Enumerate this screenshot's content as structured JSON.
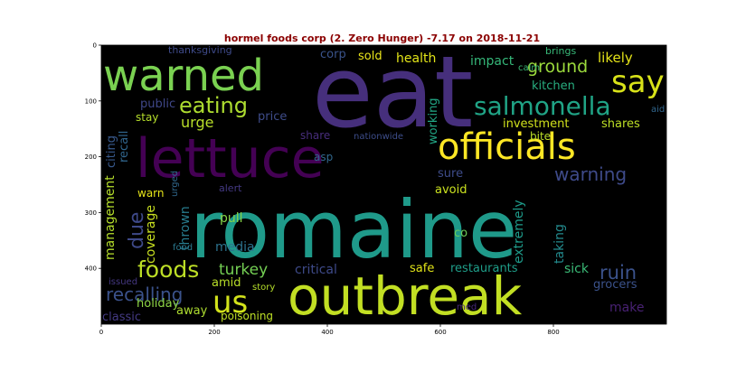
{
  "title": "hormel foods corp (2. Zero Hunger) -7.17 on 2018-11-21",
  "x_ticks": [
    "0",
    "200",
    "400",
    "600",
    "800"
  ],
  "y_ticks": [
    "0",
    "100",
    "200",
    "300",
    "400"
  ],
  "background_color": "#000000",
  "words": [
    {
      "text": "eat",
      "color": "#462f7c"
    },
    {
      "text": "romaine",
      "color": "#1f9a8a"
    },
    {
      "text": "outbreak",
      "color": "#c2df23"
    },
    {
      "text": "lettuce",
      "color": "#440154"
    },
    {
      "text": "warned",
      "color": "#7ad151"
    },
    {
      "text": "officials",
      "color": "#fde725"
    },
    {
      "text": "say",
      "color": "#d8e219"
    },
    {
      "text": "salmonella",
      "color": "#20a486"
    },
    {
      "text": "us",
      "color": "#d2e21b"
    },
    {
      "text": "foods",
      "color": "#bddf26"
    },
    {
      "text": "eating",
      "color": "#addc30"
    },
    {
      "text": "warning",
      "color": "#3e4a89"
    },
    {
      "text": "ground",
      "color": "#9bd93c"
    },
    {
      "text": "ruin",
      "color": "#3b528b"
    },
    {
      "text": "recalling",
      "color": "#3b528b"
    },
    {
      "text": "turkey",
      "color": "#75d054"
    },
    {
      "text": "urge",
      "color": "#b8de29"
    },
    {
      "text": "due",
      "color": "#3e4989"
    },
    {
      "text": "likely",
      "color": "#e5e419"
    },
    {
      "text": "health",
      "color": "#e2e418"
    },
    {
      "text": "sold",
      "color": "#eae51a"
    },
    {
      "text": "impact",
      "color": "#35b779"
    },
    {
      "text": "kitchen",
      "color": "#28ae80"
    },
    {
      "text": "investment",
      "color": "#d0e11c"
    },
    {
      "text": "shares",
      "color": "#bddf26"
    },
    {
      "text": "public",
      "color": "#3f4788"
    },
    {
      "text": "price",
      "color": "#3e4c8a"
    },
    {
      "text": "stay",
      "color": "#b5de2b"
    },
    {
      "text": "recall",
      "color": "#31668e"
    },
    {
      "text": "citing",
      "color": "#38598c"
    },
    {
      "text": "corp",
      "color": "#3a538b"
    },
    {
      "text": "share",
      "color": "#472d7b"
    },
    {
      "text": "nationwide",
      "color": "#3d4d8a"
    },
    {
      "text": "working",
      "color": "#22a785"
    },
    {
      "text": "bite",
      "color": "#bade28"
    },
    {
      "text": "asp",
      "color": "#31688e"
    },
    {
      "text": "urged",
      "color": "#31688e"
    },
    {
      "text": "sure",
      "color": "#3e4c8a"
    },
    {
      "text": "avoid",
      "color": "#cae11f"
    },
    {
      "text": "warn",
      "color": "#e5e419"
    },
    {
      "text": "management",
      "color": "#b5de2b"
    },
    {
      "text": "coverage",
      "color": "#c8e020"
    },
    {
      "text": "alert",
      "color": "#443983"
    },
    {
      "text": "extremely",
      "color": "#1e9b8a"
    },
    {
      "text": "thrown",
      "color": "#287c8e"
    },
    {
      "text": "pull",
      "color": "#86d549"
    },
    {
      "text": "co",
      "color": "#6ccd5a"
    },
    {
      "text": "media",
      "color": "#2c738e"
    },
    {
      "text": "taking",
      "color": "#238a8d"
    },
    {
      "text": "food",
      "color": "#2a788e"
    },
    {
      "text": "critical",
      "color": "#3e4a89"
    },
    {
      "text": "safe",
      "color": "#e2e418"
    },
    {
      "text": "restaurants",
      "color": "#1f9e89"
    },
    {
      "text": "sick",
      "color": "#3aba76"
    },
    {
      "text": "amid",
      "color": "#b8de29"
    },
    {
      "text": "grocers",
      "color": "#3b528b"
    },
    {
      "text": "holiday",
      "color": "#8ed645"
    },
    {
      "text": "away",
      "color": "#addc30"
    },
    {
      "text": "issued",
      "color": "#453882"
    },
    {
      "text": "story",
      "color": "#b5de2b"
    },
    {
      "text": "classic",
      "color": "#443a83"
    },
    {
      "text": "poisoning",
      "color": "#bddf26"
    },
    {
      "text": "med",
      "color": "#482878"
    },
    {
      "text": "make",
      "color": "#482173"
    },
    {
      "text": "thanksgiving",
      "color": "#3e4a89"
    },
    {
      "text": "brings",
      "color": "#37b878"
    },
    {
      "text": "calm",
      "color": "#3aba76"
    },
    {
      "text": "aid",
      "color": "#31668e"
    }
  ]
}
